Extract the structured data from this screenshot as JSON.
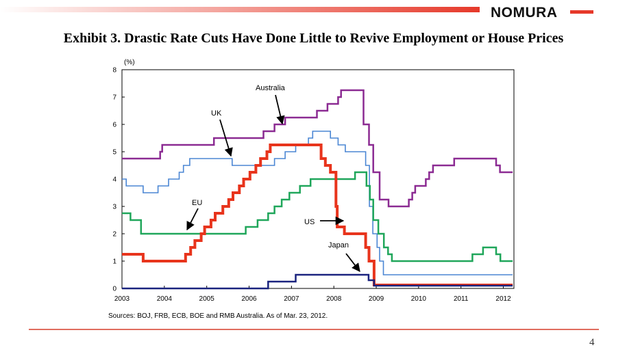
{
  "header": {
    "brand": "NOMURA"
  },
  "title": "Exhibit 3.  Drastic Rate Cuts Have Done Little to Revive Employment or House Prices",
  "footer": {
    "source": "Sources: BOJ, FRB, ECB, BOE and RMB Australia. As of Mar. 23, 2012.",
    "page_number": "4"
  },
  "colors": {
    "accent": "#e6392a",
    "australia": "#8b2a92",
    "uk": "#4a86d4",
    "eu": "#1fa65a",
    "us": "#e8341c",
    "japan": "#1a237e"
  },
  "chart_data": {
    "type": "line",
    "title": "",
    "ylabel": "(%)",
    "xlabel": "",
    "xlim": [
      2003,
      2012.25
    ],
    "ylim": [
      0,
      8
    ],
    "x_ticks": [
      "2003",
      "2004",
      "2005",
      "2006",
      "2007",
      "2008",
      "2009",
      "2010",
      "2011",
      "2012"
    ],
    "y_ticks": [
      "0",
      "1",
      "2",
      "3",
      "4",
      "5",
      "6",
      "7",
      "8"
    ],
    "grid": false,
    "series": [
      {
        "name": "Australia",
        "color": "#8b2a92",
        "points": [
          [
            2003,
            4.75
          ],
          [
            2003.9,
            4.75
          ],
          [
            2003.9,
            5.0
          ],
          [
            2003.95,
            5.0
          ],
          [
            2003.95,
            5.25
          ],
          [
            2005.17,
            5.25
          ],
          [
            2005.17,
            5.5
          ],
          [
            2006.34,
            5.5
          ],
          [
            2006.34,
            5.75
          ],
          [
            2006.6,
            5.75
          ],
          [
            2006.6,
            6.0
          ],
          [
            2006.85,
            6.0
          ],
          [
            2006.85,
            6.25
          ],
          [
            2007.6,
            6.25
          ],
          [
            2007.6,
            6.5
          ],
          [
            2007.85,
            6.5
          ],
          [
            2007.85,
            6.75
          ],
          [
            2008.1,
            6.75
          ],
          [
            2008.1,
            7.0
          ],
          [
            2008.17,
            7.0
          ],
          [
            2008.17,
            7.25
          ],
          [
            2008.7,
            7.25
          ],
          [
            2008.7,
            6.0
          ],
          [
            2008.83,
            6.0
          ],
          [
            2008.83,
            5.25
          ],
          [
            2008.93,
            5.25
          ],
          [
            2008.93,
            4.25
          ],
          [
            2009.08,
            4.25
          ],
          [
            2009.08,
            3.25
          ],
          [
            2009.29,
            3.25
          ],
          [
            2009.29,
            3.0
          ],
          [
            2009.77,
            3.0
          ],
          [
            2009.77,
            3.25
          ],
          [
            2009.85,
            3.25
          ],
          [
            2009.85,
            3.5
          ],
          [
            2009.92,
            3.5
          ],
          [
            2009.92,
            3.75
          ],
          [
            2010.17,
            3.75
          ],
          [
            2010.17,
            4.0
          ],
          [
            2010.25,
            4.0
          ],
          [
            2010.25,
            4.25
          ],
          [
            2010.34,
            4.25
          ],
          [
            2010.34,
            4.5
          ],
          [
            2010.84,
            4.5
          ],
          [
            2010.84,
            4.75
          ],
          [
            2011.83,
            4.75
          ],
          [
            2011.83,
            4.5
          ],
          [
            2011.92,
            4.5
          ],
          [
            2011.92,
            4.25
          ],
          [
            2012.22,
            4.25
          ]
        ]
      },
      {
        "name": "UK",
        "color": "#4a86d4",
        "points": [
          [
            2003,
            4.0
          ],
          [
            2003.1,
            4.0
          ],
          [
            2003.1,
            3.75
          ],
          [
            2003.5,
            3.75
          ],
          [
            2003.5,
            3.5
          ],
          [
            2003.85,
            3.5
          ],
          [
            2003.85,
            3.75
          ],
          [
            2004.1,
            3.75
          ],
          [
            2004.1,
            4.0
          ],
          [
            2004.35,
            4.0
          ],
          [
            2004.35,
            4.25
          ],
          [
            2004.45,
            4.25
          ],
          [
            2004.45,
            4.5
          ],
          [
            2004.6,
            4.5
          ],
          [
            2004.6,
            4.75
          ],
          [
            2005.6,
            4.75
          ],
          [
            2005.6,
            4.5
          ],
          [
            2006.6,
            4.5
          ],
          [
            2006.6,
            4.75
          ],
          [
            2006.85,
            4.75
          ],
          [
            2006.85,
            5.0
          ],
          [
            2007.1,
            5.0
          ],
          [
            2007.1,
            5.25
          ],
          [
            2007.4,
            5.25
          ],
          [
            2007.4,
            5.5
          ],
          [
            2007.5,
            5.5
          ],
          [
            2007.5,
            5.75
          ],
          [
            2007.92,
            5.75
          ],
          [
            2007.92,
            5.5
          ],
          [
            2008.1,
            5.5
          ],
          [
            2008.1,
            5.25
          ],
          [
            2008.27,
            5.25
          ],
          [
            2008.27,
            5.0
          ],
          [
            2008.75,
            5.0
          ],
          [
            2008.75,
            4.5
          ],
          [
            2008.84,
            4.5
          ],
          [
            2008.84,
            3.0
          ],
          [
            2008.92,
            3.0
          ],
          [
            2008.92,
            2.0
          ],
          [
            2009.02,
            2.0
          ],
          [
            2009.02,
            1.5
          ],
          [
            2009.08,
            1.5
          ],
          [
            2009.08,
            1.0
          ],
          [
            2009.17,
            1.0
          ],
          [
            2009.17,
            0.5
          ],
          [
            2012.22,
            0.5
          ]
        ]
      },
      {
        "name": "EU",
        "color": "#1fa65a",
        "points": [
          [
            2003,
            2.75
          ],
          [
            2003.2,
            2.75
          ],
          [
            2003.2,
            2.5
          ],
          [
            2003.45,
            2.5
          ],
          [
            2003.45,
            2.0
          ],
          [
            2005.92,
            2.0
          ],
          [
            2005.92,
            2.25
          ],
          [
            2006.2,
            2.25
          ],
          [
            2006.2,
            2.5
          ],
          [
            2006.45,
            2.5
          ],
          [
            2006.45,
            2.75
          ],
          [
            2006.6,
            2.75
          ],
          [
            2006.6,
            3.0
          ],
          [
            2006.77,
            3.0
          ],
          [
            2006.77,
            3.25
          ],
          [
            2006.95,
            3.25
          ],
          [
            2006.95,
            3.5
          ],
          [
            2007.2,
            3.5
          ],
          [
            2007.2,
            3.75
          ],
          [
            2007.45,
            3.75
          ],
          [
            2007.45,
            4.0
          ],
          [
            2008.5,
            4.0
          ],
          [
            2008.5,
            4.25
          ],
          [
            2008.77,
            4.25
          ],
          [
            2008.77,
            3.75
          ],
          [
            2008.85,
            3.75
          ],
          [
            2008.85,
            3.25
          ],
          [
            2008.93,
            3.25
          ],
          [
            2008.93,
            2.5
          ],
          [
            2009.05,
            2.5
          ],
          [
            2009.05,
            2.0
          ],
          [
            2009.18,
            2.0
          ],
          [
            2009.18,
            1.5
          ],
          [
            2009.28,
            1.5
          ],
          [
            2009.28,
            1.25
          ],
          [
            2009.37,
            1.25
          ],
          [
            2009.37,
            1.0
          ],
          [
            2011.27,
            1.0
          ],
          [
            2011.27,
            1.25
          ],
          [
            2011.52,
            1.25
          ],
          [
            2011.52,
            1.5
          ],
          [
            2011.83,
            1.5
          ],
          [
            2011.83,
            1.25
          ],
          [
            2011.93,
            1.25
          ],
          [
            2011.93,
            1.0
          ],
          [
            2012.22,
            1.0
          ]
        ]
      },
      {
        "name": "US",
        "color": "#e8341c",
        "points": [
          [
            2003,
            1.25
          ],
          [
            2003.5,
            1.25
          ],
          [
            2003.5,
            1.0
          ],
          [
            2004.5,
            1.0
          ],
          [
            2004.5,
            1.25
          ],
          [
            2004.62,
            1.25
          ],
          [
            2004.62,
            1.5
          ],
          [
            2004.72,
            1.5
          ],
          [
            2004.72,
            1.75
          ],
          [
            2004.87,
            1.75
          ],
          [
            2004.87,
            2.0
          ],
          [
            2004.95,
            2.0
          ],
          [
            2004.95,
            2.25
          ],
          [
            2005.1,
            2.25
          ],
          [
            2005.1,
            2.5
          ],
          [
            2005.2,
            2.5
          ],
          [
            2005.2,
            2.75
          ],
          [
            2005.38,
            2.75
          ],
          [
            2005.38,
            3.0
          ],
          [
            2005.52,
            3.0
          ],
          [
            2005.52,
            3.25
          ],
          [
            2005.62,
            3.25
          ],
          [
            2005.62,
            3.5
          ],
          [
            2005.77,
            3.5
          ],
          [
            2005.77,
            3.75
          ],
          [
            2005.87,
            3.75
          ],
          [
            2005.87,
            4.0
          ],
          [
            2006.02,
            4.0
          ],
          [
            2006.02,
            4.25
          ],
          [
            2006.16,
            4.25
          ],
          [
            2006.16,
            4.5
          ],
          [
            2006.27,
            4.5
          ],
          [
            2006.27,
            4.75
          ],
          [
            2006.42,
            4.75
          ],
          [
            2006.42,
            5.0
          ],
          [
            2006.5,
            5.0
          ],
          [
            2006.5,
            5.25
          ],
          [
            2007.7,
            5.25
          ],
          [
            2007.7,
            4.75
          ],
          [
            2007.8,
            4.75
          ],
          [
            2007.8,
            4.5
          ],
          [
            2007.92,
            4.5
          ],
          [
            2007.92,
            4.25
          ],
          [
            2008.05,
            4.25
          ],
          [
            2008.05,
            3.0
          ],
          [
            2008.08,
            3.0
          ],
          [
            2008.08,
            2.25
          ],
          [
            2008.25,
            2.25
          ],
          [
            2008.25,
            2.0
          ],
          [
            2008.75,
            2.0
          ],
          [
            2008.75,
            1.5
          ],
          [
            2008.83,
            1.5
          ],
          [
            2008.83,
            1.0
          ],
          [
            2008.95,
            1.0
          ],
          [
            2008.95,
            0.125
          ],
          [
            2012.22,
            0.125
          ]
        ]
      },
      {
        "name": "Japan",
        "color": "#1a237e",
        "points": [
          [
            2003,
            0.0
          ],
          [
            2006.45,
            0.0
          ],
          [
            2006.45,
            0.25
          ],
          [
            2007.1,
            0.25
          ],
          [
            2007.1,
            0.5
          ],
          [
            2008.82,
            0.5
          ],
          [
            2008.82,
            0.3
          ],
          [
            2008.95,
            0.3
          ],
          [
            2008.95,
            0.1
          ],
          [
            2012.22,
            0.1
          ]
        ]
      }
    ],
    "annotations": [
      "Australia",
      "UK",
      "EU",
      "US",
      "Japan"
    ]
  }
}
